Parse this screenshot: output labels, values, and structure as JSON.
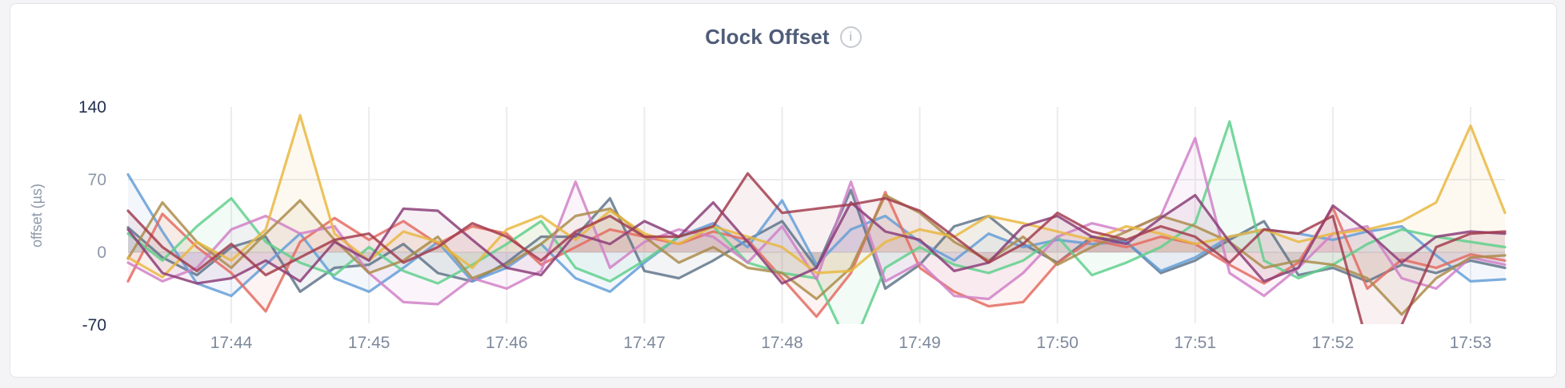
{
  "page": {
    "background": "#f4f4f6"
  },
  "card": {
    "background": "#ffffff",
    "border_color": "#e3e3e7"
  },
  "header": {
    "title": "Clock Offset",
    "info_icon_glyph": "i"
  },
  "colors": {
    "title": "#4e5c78",
    "axis_emphasis": "#24304e",
    "axis_muted": "#8d97a8",
    "x_tick": "#7e899c",
    "grid": "#ececee"
  },
  "chart_data": {
    "type": "line",
    "title": "Clock Offset",
    "xlabel": "",
    "ylabel": "offset (µs)",
    "ylim": [
      -70,
      140
    ],
    "y_ticks": [
      140,
      70,
      0,
      -70
    ],
    "y_tick_emphasis": [
      true,
      false,
      false,
      true
    ],
    "y_gridlines_at": [
      70,
      0
    ],
    "x_ticks": [
      "17:44",
      "17:45",
      "17:46",
      "17:47",
      "17:48",
      "17:49",
      "17:50",
      "17:51",
      "17:52",
      "17:53"
    ],
    "x_start": "17:43:15",
    "x_step_seconds": 15,
    "grid": "on",
    "legend": "none",
    "area_fill_to_zero": true,
    "series": [
      {
        "name": "slate",
        "color": "#5f7389",
        "values": [
          24,
          -5,
          -22,
          5,
          15,
          -38,
          -15,
          -12,
          8,
          -20,
          -28,
          -10,
          15,
          15,
          52,
          -18,
          -25,
          -8,
          12,
          30,
          -15,
          60,
          -35,
          -12,
          25,
          35,
          8,
          -10,
          15,
          10,
          -20,
          -8,
          12,
          30,
          -22,
          -15,
          -28,
          -12,
          -20,
          -8,
          -15
        ]
      },
      {
        "name": "blue",
        "color": "#639dd8",
        "values": [
          75,
          20,
          -30,
          -42,
          -12,
          18,
          -25,
          -38,
          -15,
          10,
          -28,
          -15,
          8,
          -25,
          -38,
          -10,
          15,
          28,
          5,
          50,
          -12,
          22,
          35,
          10,
          -8,
          18,
          5,
          12,
          8,
          10,
          -18,
          -5,
          15,
          22,
          18,
          12,
          20,
          25,
          -3,
          -28,
          -26
        ]
      },
      {
        "name": "salmon",
        "color": "#e46a5f",
        "values": [
          -28,
          37,
          5,
          -20,
          -57,
          10,
          33,
          12,
          30,
          8,
          25,
          18,
          -12,
          5,
          22,
          15,
          8,
          20,
          12,
          -25,
          -62,
          -20,
          58,
          -15,
          -38,
          -52,
          -48,
          -10,
          12,
          5,
          15,
          8,
          -12,
          -30,
          -10,
          43,
          -35,
          -7,
          -15,
          -2,
          -8
        ]
      },
      {
        "name": "green",
        "color": "#5fcf8c",
        "values": [
          18,
          -8,
          25,
          52,
          10,
          -10,
          -22,
          5,
          -18,
          -30,
          -12,
          8,
          30,
          -15,
          -28,
          -8,
          15,
          25,
          -10,
          -20,
          -25,
          -95,
          -15,
          5,
          -12,
          -20,
          -8,
          15,
          -22,
          -10,
          5,
          28,
          126,
          -8,
          -25,
          -12,
          8,
          22,
          15,
          10,
          5
        ]
      },
      {
        "name": "orchid",
        "color": "#d17fc7",
        "values": [
          -10,
          -28,
          -15,
          22,
          35,
          18,
          25,
          -20,
          -48,
          -50,
          -25,
          -35,
          -18,
          68,
          -15,
          10,
          22,
          15,
          -10,
          25,
          -26,
          68,
          -28,
          -10,
          -42,
          -45,
          -20,
          15,
          28,
          20,
          35,
          110,
          -20,
          -42,
          -15,
          18,
          25,
          -25,
          -35,
          -5,
          -12
        ]
      },
      {
        "name": "khaki",
        "color": "#aa8b4a",
        "values": [
          -6,
          48,
          10,
          -15,
          18,
          50,
          12,
          -20,
          -8,
          15,
          -25,
          -12,
          8,
          35,
          42,
          15,
          -10,
          5,
          -15,
          -20,
          -45,
          -15,
          55,
          38,
          10,
          -8,
          15,
          -12,
          5,
          20,
          35,
          25,
          10,
          -15,
          -8,
          -12,
          -25,
          -60,
          -25,
          -5,
          -3
        ]
      },
      {
        "name": "gold",
        "color": "#e8b73f",
        "values": [
          -5,
          -24,
          10,
          -8,
          22,
          132,
          18,
          -8,
          20,
          10,
          -15,
          22,
          35,
          12,
          40,
          18,
          8,
          25,
          15,
          5,
          -20,
          -18,
          10,
          22,
          15,
          35,
          28,
          20,
          12,
          25,
          18,
          8,
          15,
          22,
          10,
          18,
          22,
          30,
          48,
          122,
          38
        ]
      },
      {
        "name": "plum",
        "color": "#8a3d77",
        "values": [
          22,
          -20,
          -30,
          -25,
          -8,
          -28,
          10,
          -8,
          42,
          40,
          12,
          -15,
          -22,
          18,
          8,
          30,
          15,
          48,
          10,
          -30,
          -15,
          48,
          20,
          12,
          -18,
          -10,
          25,
          35,
          15,
          8,
          33,
          55,
          10,
          -28,
          -15,
          45,
          20,
          -10,
          15,
          20,
          18
        ]
      },
      {
        "name": "maroon",
        "color": "#a23b4e",
        "values": [
          40,
          5,
          -18,
          8,
          -22,
          -5,
          12,
          18,
          -10,
          5,
          28,
          15,
          -8,
          20,
          35,
          15,
          15,
          25,
          76,
          38,
          42,
          46,
          52,
          40,
          15,
          -10,
          8,
          38,
          20,
          12,
          25,
          15,
          -10,
          22,
          18,
          35,
          -88,
          -70,
          5,
          18,
          20
        ]
      }
    ]
  }
}
